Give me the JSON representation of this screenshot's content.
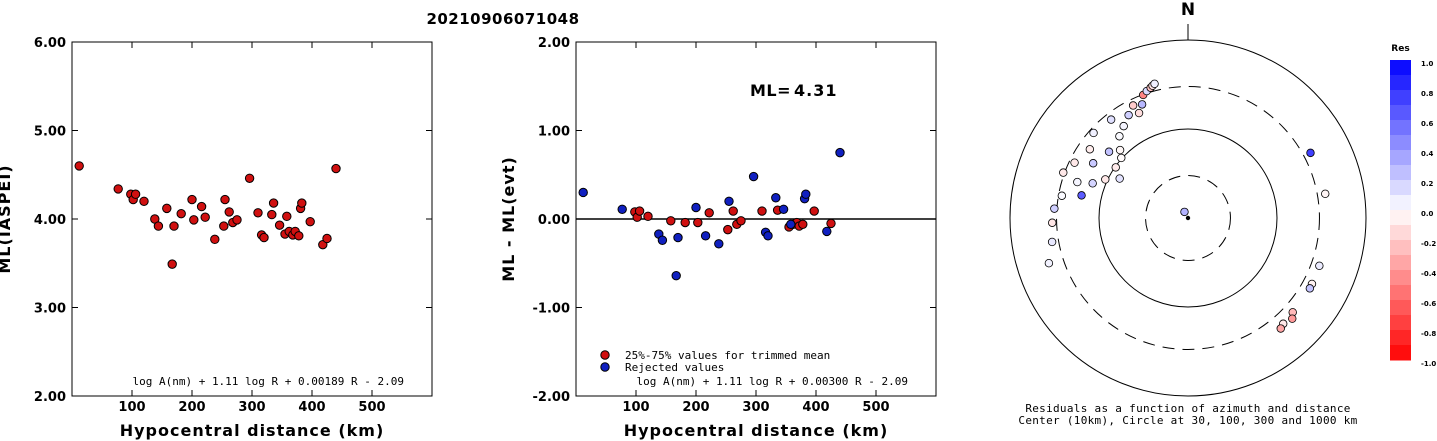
{
  "title": "20210906071048",
  "chart_data": [
    {
      "type": "scatter",
      "xlabel": "Hypocentral distance (km)",
      "ylabel": "ML(IASPEI)",
      "xlim": [
        0,
        600
      ],
      "ylim": [
        2.0,
        6.0
      ],
      "x_ticks": [
        "100",
        "200",
        "300",
        "400",
        "500"
      ],
      "y_ticks": [
        "2.00",
        "3.00",
        "4.00",
        "5.00",
        "6.00"
      ],
      "formula": "log A(nm) + 1.11 log R + 0.00189 R - 2.09",
      "point_color": "#d01010",
      "points": [
        [
          12,
          4.6
        ],
        [
          77,
          4.34
        ],
        [
          98,
          4.28
        ],
        [
          102,
          4.22
        ],
        [
          106,
          4.28
        ],
        [
          120,
          4.2
        ],
        [
          138,
          4.0
        ],
        [
          144,
          3.92
        ],
        [
          158,
          4.12
        ],
        [
          167,
          3.49
        ],
        [
          170,
          3.92
        ],
        [
          182,
          4.06
        ],
        [
          200,
          4.22
        ],
        [
          203,
          3.99
        ],
        [
          216,
          4.14
        ],
        [
          222,
          4.02
        ],
        [
          238,
          3.77
        ],
        [
          253,
          3.92
        ],
        [
          255,
          4.22
        ],
        [
          262,
          4.08
        ],
        [
          268,
          3.96
        ],
        [
          275,
          3.99
        ],
        [
          296,
          4.46
        ],
        [
          310,
          4.07
        ],
        [
          316,
          3.82
        ],
        [
          320,
          3.79
        ],
        [
          333,
          4.05
        ],
        [
          336,
          4.18
        ],
        [
          346,
          3.93
        ],
        [
          355,
          3.83
        ],
        [
          358,
          4.03
        ],
        [
          362,
          3.86
        ],
        [
          368,
          3.82
        ],
        [
          372,
          3.86
        ],
        [
          378,
          3.81
        ],
        [
          381,
          4.12
        ],
        [
          383,
          4.18
        ],
        [
          397,
          3.97
        ],
        [
          418,
          3.71
        ],
        [
          425,
          3.78
        ],
        [
          440,
          4.57
        ]
      ]
    },
    {
      "type": "scatter",
      "xlabel": "Hypocentral distance (km)",
      "ylabel": "ML - ML(evt)",
      "xlim": [
        0,
        600
      ],
      "ylim": [
        -2.0,
        2.0
      ],
      "x_ticks": [
        "100",
        "200",
        "300",
        "400",
        "500"
      ],
      "y_ticks": [
        "-2.00",
        "-1.00",
        "0.00",
        "1.00",
        "2.00"
      ],
      "ml_label": "ML=",
      "ml_value": "4.31",
      "formula": "log A(nm) + 1.11 log R + 0.00300 R - 2.09",
      "legend": [
        {
          "label": "25%-75% values for trimmed mean",
          "color": "#d01010"
        },
        {
          "label": "Rejected values",
          "color": "#1020c0"
        }
      ],
      "series": [
        {
          "name": "25%-75% values for trimmed mean",
          "color": "#d01010",
          "points": [
            [
              98,
              0.08
            ],
            [
              102,
              0.02
            ],
            [
              106,
              0.09
            ],
            [
              120,
              0.03
            ],
            [
              158,
              -0.02
            ],
            [
              182,
              -0.04
            ],
            [
              203,
              -0.04
            ],
            [
              222,
              0.07
            ],
            [
              253,
              -0.12
            ],
            [
              262,
              0.09
            ],
            [
              268,
              -0.06
            ],
            [
              275,
              -0.02
            ],
            [
              310,
              0.09
            ],
            [
              336,
              0.1
            ],
            [
              355,
              -0.09
            ],
            [
              362,
              -0.06
            ],
            [
              368,
              -0.04
            ],
            [
              372,
              -0.08
            ],
            [
              378,
              -0.06
            ],
            [
              397,
              0.09
            ],
            [
              425,
              -0.05
            ]
          ]
        },
        {
          "name": "Rejected values",
          "color": "#1020c0",
          "points": [
            [
              12,
              0.3
            ],
            [
              77,
              0.11
            ],
            [
              138,
              -0.17
            ],
            [
              144,
              -0.24
            ],
            [
              167,
              -0.64
            ],
            [
              170,
              -0.21
            ],
            [
              200,
              0.13
            ],
            [
              216,
              -0.19
            ],
            [
              238,
              -0.28
            ],
            [
              255,
              0.2
            ],
            [
              296,
              0.48
            ],
            [
              316,
              -0.15
            ],
            [
              320,
              -0.19
            ],
            [
              333,
              0.24
            ],
            [
              346,
              0.11
            ],
            [
              358,
              -0.06
            ],
            [
              381,
              0.23
            ],
            [
              383,
              0.28
            ],
            [
              418,
              -0.14
            ],
            [
              440,
              0.75
            ]
          ]
        }
      ]
    },
    {
      "type": "scatter",
      "subtype": "polar",
      "north_label": "N",
      "caption_line1": "Residuals as a function of azimuth and distance",
      "caption_line2": "Center (10km), Circle at 30, 100, 300 and 1000 km",
      "colorbar_title": "Res",
      "colorbar_ticks": [
        "1.0",
        "0.8",
        "0.6",
        "0.4",
        "0.2",
        "0.0",
        "-0.2",
        "-0.4",
        "-0.6",
        "-0.8",
        "-1.0"
      ],
      "rings_km": [
        30,
        100,
        300,
        1000
      ],
      "points": [
        {
          "az": -30,
          "dist": 12,
          "res": 0.3
        },
        {
          "az": -60,
          "dist": 77,
          "res": 0.11
        },
        {
          "az": -55,
          "dist": 98,
          "res": -0.08
        },
        {
          "az": -48,
          "dist": 102,
          "res": -0.02
        },
        {
          "az": -65,
          "dist": 106,
          "res": -0.09
        },
        {
          "az": -45,
          "dist": 120,
          "res": -0.03
        },
        {
          "az": -70,
          "dist": 138,
          "res": 0.17
        },
        {
          "az": -50,
          "dist": 144,
          "res": 0.24
        },
        {
          "az": -40,
          "dist": 158,
          "res": 0.02
        },
        {
          "az": -78,
          "dist": 167,
          "res": 0.64
        },
        {
          "az": -60,
          "dist": 170,
          "res": 0.21
        },
        {
          "az": -35,
          "dist": 182,
          "res": 0.04
        },
        {
          "az": -25,
          "dist": 200,
          "res": -0.13
        },
        {
          "az": -72,
          "dist": 203,
          "res": 0.04
        },
        {
          "az": -30,
          "dist": 216,
          "res": 0.19
        },
        {
          "az": -55,
          "dist": 222,
          "res": -0.07
        },
        {
          "az": -22,
          "dist": 238,
          "res": 0.28
        },
        {
          "az": -38,
          "dist": 253,
          "res": 0.12
        },
        {
          "az": -26,
          "dist": 255,
          "res": -0.2
        },
        {
          "az": -64,
          "dist": 262,
          "res": -0.09
        },
        {
          "az": -48,
          "dist": 268,
          "res": 0.06
        },
        {
          "az": -80,
          "dist": 275,
          "res": 0.02
        },
        {
          "az": -20,
          "dist": 296,
          "res": -0.48
        },
        {
          "az": -70,
          "dist": 310,
          "res": -0.09
        },
        {
          "az": -18,
          "dist": 316,
          "res": 0.15
        },
        {
          "az": -86,
          "dist": 320,
          "res": 0.19
        },
        {
          "az": -16,
          "dist": 333,
          "res": -0.24
        },
        {
          "az": -92,
          "dist": 336,
          "res": -0.1
        },
        {
          "az": -15,
          "dist": 346,
          "res": -0.11
        },
        {
          "az": -100,
          "dist": 355,
          "res": 0.09
        },
        {
          "az": -14,
          "dist": 358,
          "res": 0.06
        },
        {
          "az": 62,
          "dist": 362,
          "res": 0.75
        },
        {
          "az": 80,
          "dist": 368,
          "res": -0.04
        },
        {
          "az": 110,
          "dist": 372,
          "res": 0.08
        },
        {
          "az": 118,
          "dist": 378,
          "res": -0.05
        },
        {
          "az": 120,
          "dist": 381,
          "res": 0.23
        },
        {
          "az": 132,
          "dist": 383,
          "res": -0.28
        },
        {
          "az": 138,
          "dist": 397,
          "res": -0.09
        },
        {
          "az": 140,
          "dist": 418,
          "res": -0.35
        },
        {
          "az": 134,
          "dist": 425,
          "res": -0.4
        },
        {
          "az": -108,
          "dist": 440,
          "res": 0.05
        }
      ]
    }
  ]
}
